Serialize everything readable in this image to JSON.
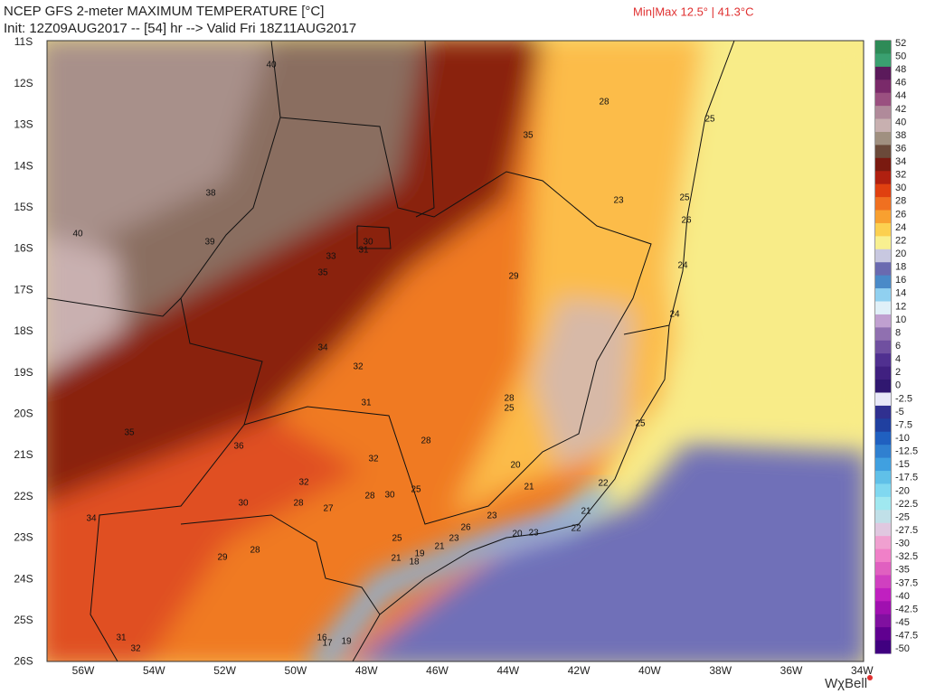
{
  "header": {
    "title": "NCEP GFS 2-meter MAXIMUM TEMPERATURE [°C]",
    "subtitle": "Init: 12Z09AUG2017 -- [54] hr --> Valid Fri 18Z11AUG2017",
    "minmax": "Min|Max 12.5° | 41.3°C"
  },
  "lat_labels": [
    "11S",
    "12S",
    "13S",
    "14S",
    "15S",
    "16S",
    "17S",
    "18S",
    "19S",
    "20S",
    "21S",
    "22S",
    "23S",
    "24S",
    "25S",
    "26S"
  ],
  "lon_labels": [
    "56W",
    "54W",
    "52W",
    "50W",
    "48W",
    "46W",
    "44W",
    "42W",
    "40W",
    "38W",
    "36W",
    "34W"
  ],
  "colorbar_labels": [
    52,
    50,
    48,
    46,
    44,
    42,
    40,
    38,
    36,
    34,
    32,
    30,
    28,
    26,
    24,
    22,
    20,
    18,
    16,
    14,
    12,
    10,
    8,
    6,
    4,
    2,
    0,
    -2.5,
    -5,
    -7.5,
    -10,
    -12.5,
    -15,
    -17.5,
    -20,
    -22.5,
    -25,
    -27.5,
    -30,
    -32.5,
    -35,
    -37.5,
    -40,
    -42.5,
    -45,
    -47.5,
    -50
  ],
  "contour_labels": [
    "40",
    "28",
    "25",
    "35",
    "38",
    "23",
    "25",
    "26",
    "40",
    "30",
    "39",
    "31",
    "33",
    "24",
    "35",
    "29",
    "24",
    "34",
    "32",
    "31",
    "28",
    "25",
    "25",
    "35",
    "28",
    "36",
    "32",
    "20",
    "32",
    "21",
    "22",
    "25",
    "30",
    "28",
    "28",
    "30",
    "27",
    "21",
    "34",
    "23",
    "26",
    "22",
    "20",
    "23",
    "25",
    "23",
    "21",
    "19",
    "29",
    "28",
    "21",
    "18",
    "31",
    "32",
    "16",
    "17",
    "19"
  ],
  "logo": "WχBell"
}
